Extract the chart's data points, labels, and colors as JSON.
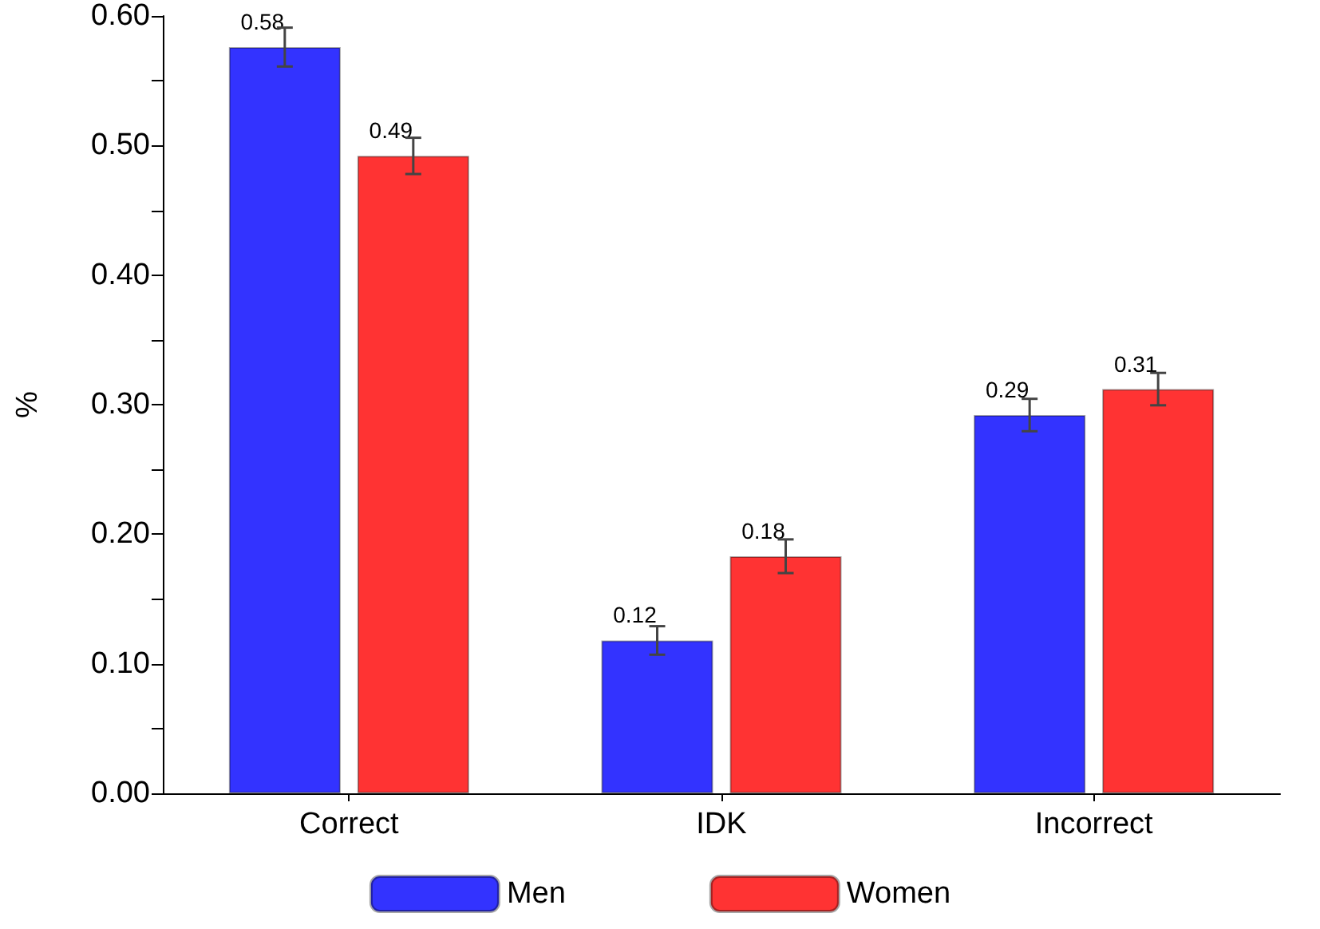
{
  "chart_data": {
    "type": "bar",
    "ylabel": "%",
    "categories": [
      "Correct",
      "IDK",
      "Incorrect"
    ],
    "series": [
      {
        "name": "Men",
        "color": "#3333ff",
        "values": [
          0.576,
          0.118,
          0.292
        ],
        "errors": [
          0.015,
          0.011,
          0.0125
        ],
        "value_labels": [
          "0.58",
          "0.12",
          "0.29"
        ]
      },
      {
        "name": "Women",
        "color": "#ff3333",
        "values": [
          0.492,
          0.183,
          0.312
        ],
        "errors": [
          0.014,
          0.013,
          0.0125
        ],
        "value_labels": [
          "0.49",
          "0.18",
          "0.31"
        ]
      }
    ],
    "ylim": [
      0,
      0.6
    ],
    "yticks": [
      {
        "value": 0,
        "label": "0.00"
      },
      {
        "value": 0.05,
        "label": null
      },
      {
        "value": 0.1,
        "label": "0.10"
      },
      {
        "value": 0.15,
        "label": null
      },
      {
        "value": 0.2,
        "label": "0.20"
      },
      {
        "value": 0.25,
        "label": null
      },
      {
        "value": 0.3,
        "label": "0.30"
      },
      {
        "value": 0.35,
        "label": null
      },
      {
        "value": 0.4,
        "label": "0.40"
      },
      {
        "value": 0.45,
        "label": null
      },
      {
        "value": 0.5,
        "label": "0.50"
      },
      {
        "value": 0.55,
        "label": null
      },
      {
        "value": 0.6,
        "label": "0.60"
      }
    ],
    "grid": false,
    "legend": "bottom"
  }
}
